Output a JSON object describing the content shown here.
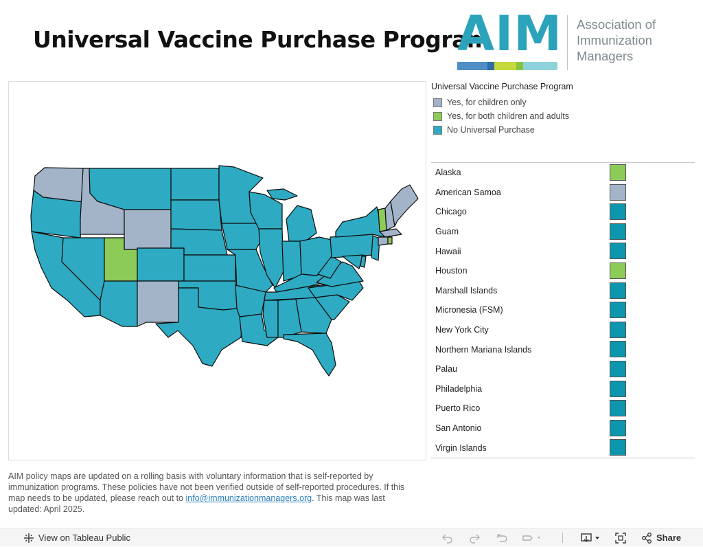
{
  "page": {
    "title": "Universal Vaccine Purchase Program"
  },
  "logo": {
    "mark": "AIM",
    "text": "Association of\nImmunization\nManagers"
  },
  "colors": {
    "children_only": "#a3b4c9",
    "children_adults": "#8ccb58",
    "no_universal": "#2eaac2",
    "table_no_universal": "#0d96ad",
    "logo_teal": "#2aa3bb"
  },
  "legend": {
    "title": "Universal Vaccine Purchase Program",
    "items": [
      {
        "key": "children_only",
        "label": "Yes, for children only"
      },
      {
        "key": "children_adults",
        "label": "Yes, for both children and adults"
      },
      {
        "key": "no_universal",
        "label": "No Universal Purchase"
      }
    ]
  },
  "map": {
    "states_children_only": [
      "Washington",
      "Idaho",
      "Wyoming",
      "New Mexico",
      "Maine",
      "New Hampshire",
      "Connecticut"
    ],
    "states_children_and_adults": [
      "Utah",
      "Vermont",
      "Rhode Island"
    ],
    "all_other_states": "no_universal"
  },
  "table": {
    "rows": [
      {
        "label": "Alaska",
        "status": "children_adults"
      },
      {
        "label": "American Samoa",
        "status": "children_only"
      },
      {
        "label": "Chicago",
        "status": "no_universal"
      },
      {
        "label": "Guam",
        "status": "no_universal"
      },
      {
        "label": "Hawaii",
        "status": "no_universal"
      },
      {
        "label": "Houston",
        "status": "children_adults"
      },
      {
        "label": "Marshall Islands",
        "status": "no_universal"
      },
      {
        "label": "Micronesia (FSM)",
        "status": "no_universal"
      },
      {
        "label": "New York City",
        "status": "no_universal"
      },
      {
        "label": "Northern Mariana Islands",
        "status": "no_universal"
      },
      {
        "label": "Palau",
        "status": "no_universal"
      },
      {
        "label": "Philadelphia",
        "status": "no_universal"
      },
      {
        "label": "Puerto Rico",
        "status": "no_universal"
      },
      {
        "label": "San Antonio",
        "status": "no_universal"
      },
      {
        "label": "Virgin Islands",
        "status": "no_universal"
      }
    ]
  },
  "note": {
    "text_before": "AIM policy maps are updated on a rolling basis with voluntary information that is self-reported by immunization programs. These policies have not been verified outside of self-reported procedures. If this map needs to be updated, please reach out to ",
    "link": "info@immunizationmanagers.org",
    "text_after": ". This map was last updated: April 2025."
  },
  "toolbar": {
    "view_label": "View on Tableau Public",
    "share_label": "Share",
    "icons": [
      "tableau-icon",
      "undo-icon",
      "redo-icon",
      "revert-icon",
      "refresh-icon",
      "pause-icon",
      "download-icon",
      "fullscreen-icon",
      "share-icon"
    ]
  }
}
